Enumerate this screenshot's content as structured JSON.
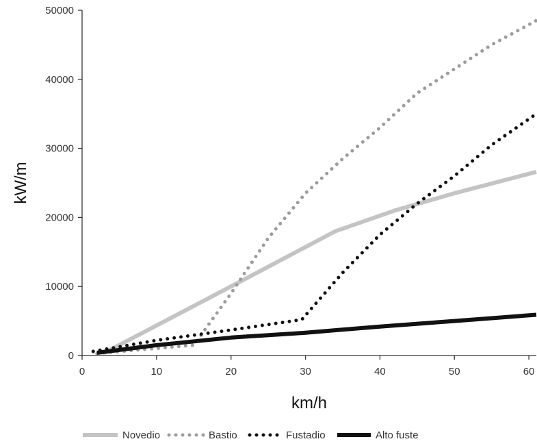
{
  "chart_data": {
    "type": "line",
    "title": "",
    "xlabel": "km/h",
    "ylabel": "kW/m",
    "xlim": [
      0,
      61
    ],
    "ylim": [
      0,
      50000
    ],
    "xticks": [
      0,
      10,
      20,
      30,
      40,
      50,
      60
    ],
    "xtick_labels": [
      "0",
      "10",
      "20",
      "30",
      "40",
      "50",
      "60"
    ],
    "yticks": [
      0,
      10000,
      20000,
      30000,
      40000,
      50000
    ],
    "ytick_labels": [
      "0",
      "10000",
      "20000",
      "30000",
      "40000",
      "50000"
    ],
    "grid": false,
    "legend_position": "bottom",
    "series": [
      {
        "name": "Novedio",
        "style": "solid-thick",
        "color": "#c4c4c4",
        "x": [
          3,
          20,
          34,
          42,
          50,
          61
        ],
        "y": [
          400,
          10000,
          18000,
          21000,
          23500,
          26600
        ]
      },
      {
        "name": "Bastio",
        "style": "dotted",
        "color": "#9b9b9b",
        "x": [
          2,
          15,
          20,
          25,
          30,
          35,
          40,
          45,
          50,
          55,
          61
        ],
        "y": [
          300,
          1500,
          9000,
          17000,
          23500,
          28500,
          33000,
          38000,
          41500,
          45000,
          48500
        ]
      },
      {
        "name": "Fustadio",
        "style": "dotted",
        "color": "#111111",
        "x": [
          1.5,
          10,
          20,
          29.5,
          35,
          40,
          45,
          50,
          55,
          61
        ],
        "y": [
          600,
          2200,
          3700,
          5200,
          12000,
          17500,
          22000,
          26000,
          30500,
          35000
        ]
      },
      {
        "name": "Alto fuste",
        "style": "solid-thick",
        "color": "#111111",
        "x": [
          2,
          10,
          20,
          30,
          40,
          50,
          61
        ],
        "y": [
          400,
          1500,
          2600,
          3300,
          4200,
          5000,
          5900
        ]
      }
    ]
  }
}
